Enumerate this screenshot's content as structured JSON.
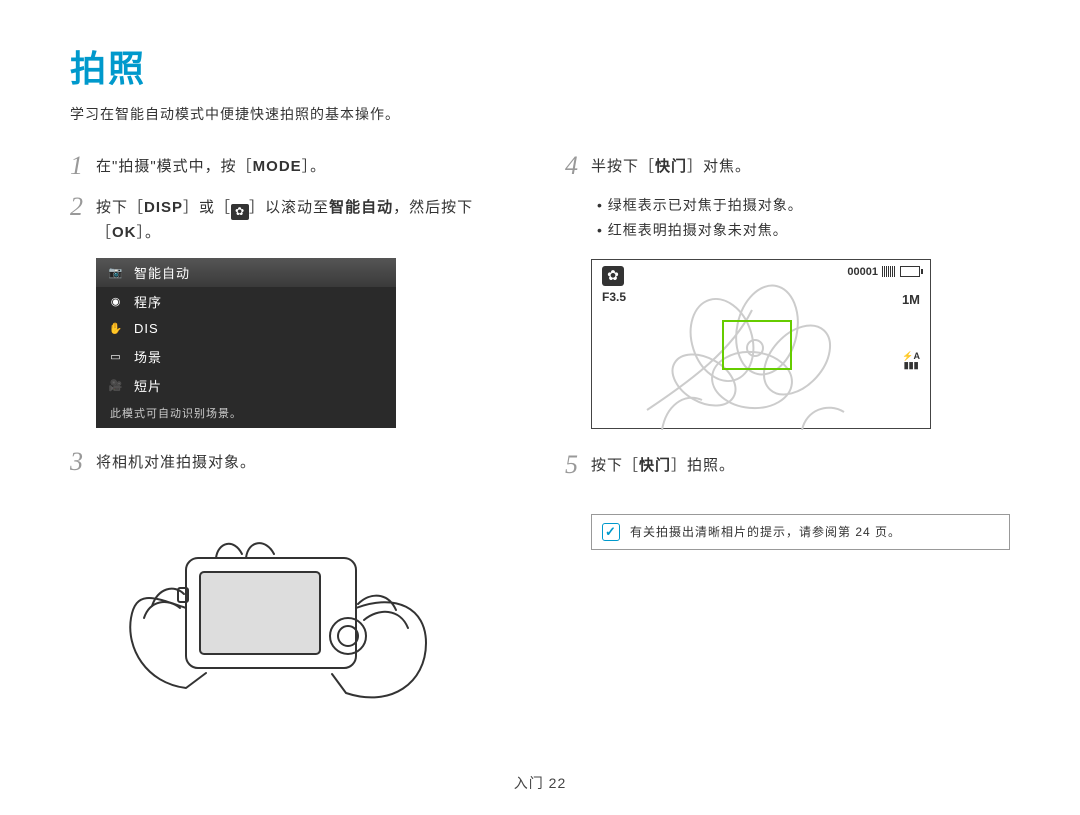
{
  "title": "拍照",
  "subtitle": "学习在智能自动模式中便捷快速拍照的基本操作。",
  "steps": {
    "s1_pre": "在\"拍摄\"模式中，按［",
    "s1_mode": "MODE",
    "s1_post": "］。",
    "s2_pre": "按下［",
    "s2_disp": "DISP",
    "s2_mid": "］或［",
    "s2_mid2": "］以滚动至",
    "s2_bold": "智能自动",
    "s2_post": "，然后按下［",
    "s2_ok": "OK",
    "s2_end": "］。",
    "s3": "将相机对准拍摄对象。",
    "s4_pre": "半按下［",
    "s4_bold": "快门",
    "s4_post": "］对焦。",
    "s5_pre": "按下［",
    "s5_bold": "快门",
    "s5_post": "］拍照。"
  },
  "bullets": {
    "b1": "绿框表示已对焦于拍摄对象。",
    "b2": "红框表明拍摄对象未对焦。"
  },
  "menu": {
    "items": [
      {
        "label": "智能自动",
        "active": true,
        "icon": "camera"
      },
      {
        "label": "程序",
        "active": false,
        "icon": "aperture"
      },
      {
        "label": "DIS",
        "active": false,
        "icon": "hand"
      },
      {
        "label": "场景",
        "active": false,
        "icon": "scene"
      },
      {
        "label": "短片",
        "active": false,
        "icon": "video"
      }
    ],
    "hint": "此模式可自动识别场景。"
  },
  "lcd": {
    "macro_glyph": "✿",
    "fvalue": "F3.5",
    "counter": "00001",
    "right_1m": "1M",
    "right_fa_top": "⚡A",
    "right_fa_bot": "▮▮▮",
    "focus_color": "#66cc00"
  },
  "tip": "有关拍摄出清晰相片的提示，请参阅第 24 页。",
  "footer_label": "入门",
  "footer_page": "22",
  "colors": {
    "title": "#0099cc",
    "stepnum": "#999999",
    "panel_bg": "#2a2a2a"
  }
}
